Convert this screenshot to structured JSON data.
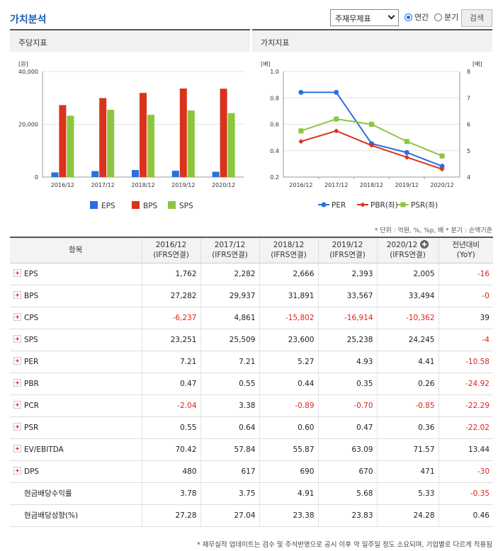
{
  "header": {
    "title": "가치분석",
    "select_value": "주재무제표",
    "radio_annual": "연간",
    "radio_quarter": "분기",
    "search_label": "검색"
  },
  "left_chart": {
    "panel_title": "주당지표",
    "y_unit": "[원]",
    "y_ticks": [
      "0",
      "20,000",
      "40,000"
    ],
    "legend": [
      "EPS",
      "BPS",
      "SPS"
    ]
  },
  "right_chart": {
    "panel_title": "가치지표",
    "y_left_unit": "[배]",
    "y_right_unit": "[배]",
    "y_left_ticks": [
      "0.2",
      "0.4",
      "0.6",
      "0.8",
      "1.0"
    ],
    "y_right_ticks": [
      "4",
      "5",
      "6",
      "7",
      "8"
    ],
    "legend": [
      "PER",
      "PBR(좌)",
      "PSR(좌)"
    ]
  },
  "chart_data": [
    {
      "type": "bar",
      "title": "주당지표",
      "categories": [
        "2016/12",
        "2017/12",
        "2018/12",
        "2019/12",
        "2020/12"
      ],
      "series": [
        {
          "name": "EPS",
          "values": [
            1762,
            2282,
            2666,
            2393,
            2005
          ],
          "color": "#2a6fe0"
        },
        {
          "name": "BPS",
          "values": [
            27282,
            29937,
            31891,
            33567,
            33494
          ],
          "color": "#d9331b"
        },
        {
          "name": "SPS",
          "values": [
            23251,
            25509,
            23600,
            25238,
            24245
          ],
          "color": "#8cc63f"
        }
      ],
      "ylim": [
        0,
        40000
      ],
      "grid": true,
      "legend_position": "bottom"
    },
    {
      "type": "line",
      "title": "가치지표",
      "categories": [
        "2016/12",
        "2017/12",
        "2018/12",
        "2019/12",
        "2020/12"
      ],
      "series": [
        {
          "name": "PER",
          "axis": "right",
          "values": [
            7.21,
            7.21,
            5.27,
            4.93,
            4.41
          ],
          "color": "#2a6fe0",
          "marker": "circle"
        },
        {
          "name": "PBR(좌)",
          "axis": "left",
          "values": [
            0.47,
            0.55,
            0.44,
            0.35,
            0.26
          ],
          "color": "#d9331b",
          "marker": "diamond"
        },
        {
          "name": "PSR(좌)",
          "axis": "left",
          "values": [
            0.55,
            0.64,
            0.6,
            0.47,
            0.36
          ],
          "color": "#8cc63f",
          "marker": "square"
        }
      ],
      "ylim_left": [
        0.2,
        1.0
      ],
      "ylim_right": [
        4,
        8
      ],
      "grid": true,
      "legend_position": "bottom"
    }
  ],
  "table": {
    "unit_note": "* 단위 : 억원, %, %p, 배   * 분기 : 순액기준",
    "header_item": "항목",
    "columns": [
      {
        "year": "2016/12",
        "basis": "(IFRS연결)"
      },
      {
        "year": "2017/12",
        "basis": "(IFRS연결)"
      },
      {
        "year": "2018/12",
        "basis": "(IFRS연결)"
      },
      {
        "year": "2019/12",
        "basis": "(IFRS연결)"
      },
      {
        "year": "2020/12",
        "basis": "(IFRS연결)"
      }
    ],
    "yoy_label_1": "전년대비",
    "yoy_label_2": "(YoY)",
    "rows": [
      {
        "name": "EPS",
        "expand": true,
        "values": [
          "1,762",
          "2,282",
          "2,666",
          "2,393",
          "2,005"
        ],
        "yoy": "-16"
      },
      {
        "name": "BPS",
        "expand": true,
        "values": [
          "27,282",
          "29,937",
          "31,891",
          "33,567",
          "33,494"
        ],
        "yoy": "-0"
      },
      {
        "name": "CPS",
        "expand": true,
        "values": [
          "-6,237",
          "4,861",
          "-15,802",
          "-16,914",
          "-10,362"
        ],
        "yoy": "39"
      },
      {
        "name": "SPS",
        "expand": true,
        "values": [
          "23,251",
          "25,509",
          "23,600",
          "25,238",
          "24,245"
        ],
        "yoy": "-4"
      },
      {
        "name": "PER",
        "expand": true,
        "values": [
          "7.21",
          "7.21",
          "5.27",
          "4.93",
          "4.41"
        ],
        "yoy": "-10.58"
      },
      {
        "name": "PBR",
        "expand": true,
        "values": [
          "0.47",
          "0.55",
          "0.44",
          "0.35",
          "0.26"
        ],
        "yoy": "-24.92"
      },
      {
        "name": "PCR",
        "expand": true,
        "values": [
          "-2.04",
          "3.38",
          "-0.89",
          "-0.70",
          "-0.85"
        ],
        "yoy": "-22.29"
      },
      {
        "name": "PSR",
        "expand": true,
        "values": [
          "0.55",
          "0.64",
          "0.60",
          "0.47",
          "0.36"
        ],
        "yoy": "-22.02"
      },
      {
        "name": "EV/EBITDA",
        "expand": true,
        "values": [
          "70.42",
          "57.84",
          "55.87",
          "63.09",
          "71.57"
        ],
        "yoy": "13.44"
      },
      {
        "name": "DPS",
        "expand": true,
        "values": [
          "480",
          "617",
          "690",
          "670",
          "471"
        ],
        "yoy": "-30"
      },
      {
        "name": "현금배당수익률",
        "expand": false,
        "values": [
          "3.78",
          "3.75",
          "4.91",
          "5.68",
          "5.33"
        ],
        "yoy": "-0.35"
      },
      {
        "name": "현금배당성향(%)",
        "expand": false,
        "values": [
          "27.28",
          "27.04",
          "23.38",
          "23.83",
          "24.28"
        ],
        "yoy": "0.46"
      }
    ]
  },
  "footnote": "* 재무실적 업데이트는 검수 및 주석반영으로 공시 이후 약 일주일 정도 소요되며, 기업별로 다르게 적용됨",
  "colors": {
    "accent": "#1c5fb8",
    "negative": "#e0201c"
  }
}
